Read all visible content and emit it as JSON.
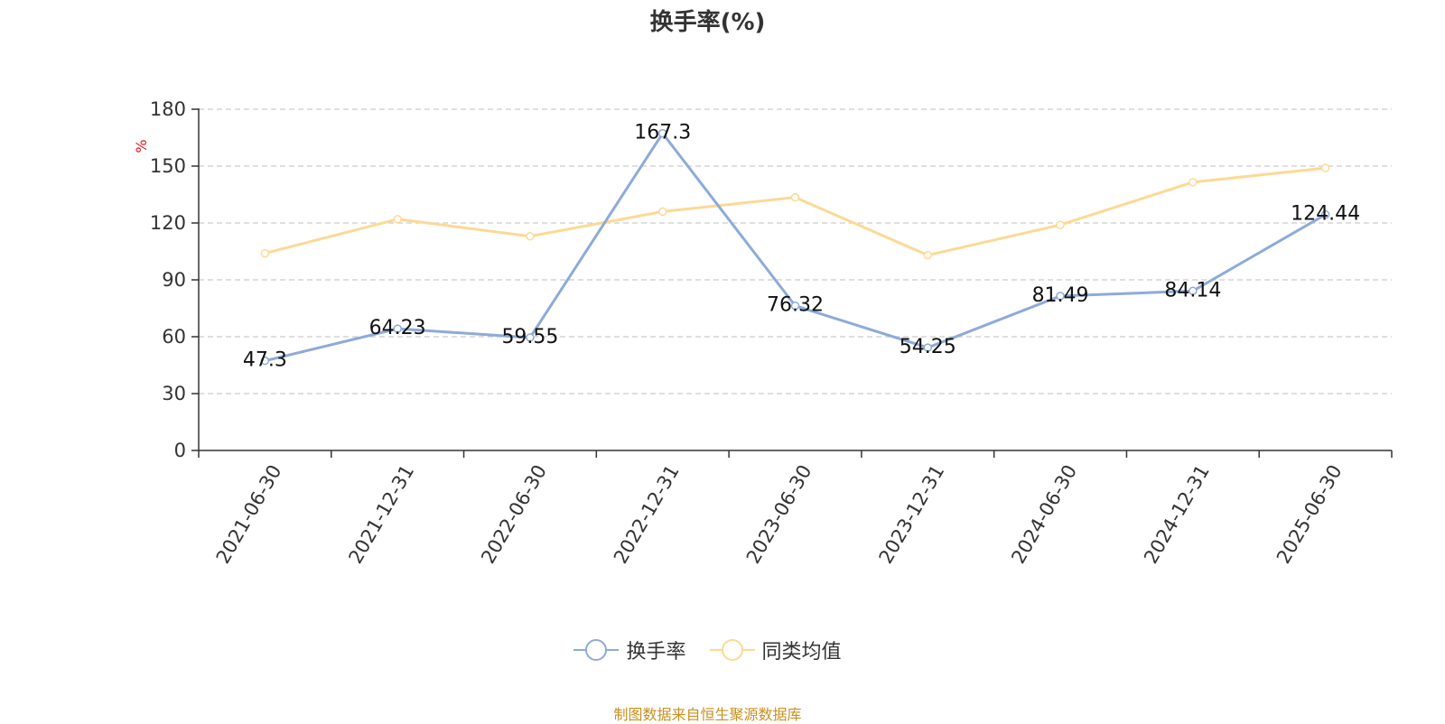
{
  "title": "换手率(%)",
  "source_note": "制图数据来自恒生聚源数据库",
  "colors": {
    "series_1": "#8eaad8",
    "series_2": "#fcd994",
    "axis": "#333333",
    "grid": "#cccccc",
    "unit": "#e8161d",
    "source": "#c9901e"
  },
  "chart_data": {
    "type": "line",
    "title": "换手率(%)",
    "xlabel": "",
    "ylabel": "%",
    "ylim": [
      0,
      180
    ],
    "yticks": [
      0,
      30,
      60,
      90,
      120,
      150,
      180
    ],
    "grid": true,
    "legend_position": "bottom",
    "categories": [
      "2021-06-30",
      "2021-12-31",
      "2022-06-30",
      "2022-12-31",
      "2023-06-30",
      "2023-12-31",
      "2024-06-30",
      "2024-12-31",
      "2025-06-30"
    ],
    "series": [
      {
        "name": "换手率",
        "values": [
          47.3,
          64.23,
          59.55,
          167.3,
          76.32,
          54.25,
          81.49,
          84.14,
          124.44
        ],
        "labels": [
          "47.3",
          "64.23",
          "59.55",
          "167.3",
          "76.32",
          "54.25",
          "81.49",
          "84.14",
          "124.44"
        ],
        "color": "#8eaad8"
      },
      {
        "name": "同类均值",
        "values": [
          104,
          122,
          113,
          126,
          133.5,
          103,
          119,
          141.5,
          149
        ],
        "color": "#fcd994"
      }
    ]
  }
}
